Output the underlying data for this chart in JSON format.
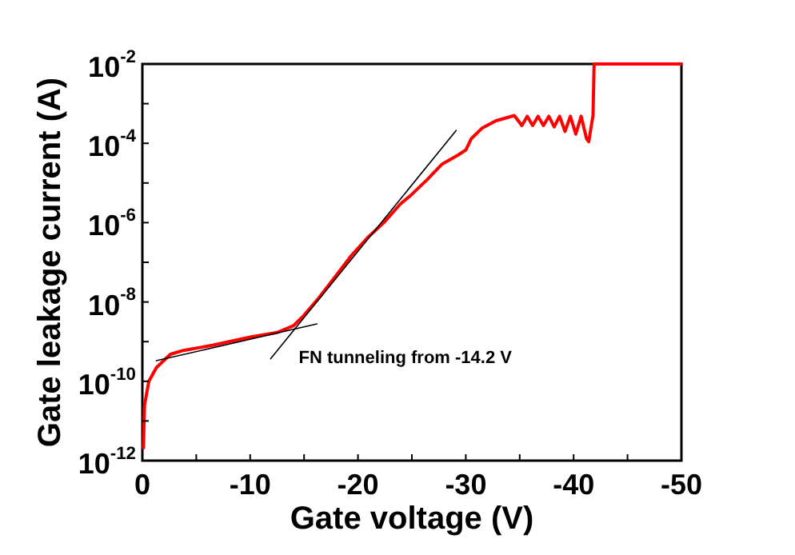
{
  "chart_data": {
    "type": "line",
    "xlabel": "Gate voltage (V)",
    "ylabel": "Gate leakage current (A)",
    "xlim": [
      0,
      -50
    ],
    "ylim": [
      1e-12,
      0.01
    ],
    "log": "y",
    "grid": false,
    "legend": false,
    "marker": "none",
    "xticks": [
      0,
      {
        "value": -5,
        "label": null
      },
      -10,
      {
        "value": -15,
        "label": null
      },
      -20,
      {
        "value": -25,
        "label": null
      },
      -30,
      {
        "value": -35,
        "label": null
      },
      -40,
      {
        "value": -45,
        "label": null
      },
      -50
    ],
    "yticks": [
      {
        "value": 1e-12,
        "label": "10$^{-12}$"
      },
      {
        "value": 1e-11,
        "label": null
      },
      {
        "value": 1e-10,
        "label": "10$^{-10}$"
      },
      {
        "value": 1e-09,
        "label": null
      },
      {
        "value": 1e-08,
        "label": "10$^{-8}$"
      },
      {
        "value": 1e-07,
        "label": null
      },
      {
        "value": 1e-06,
        "label": "10$^{-6}$"
      },
      {
        "value": 1e-05,
        "label": null
      },
      {
        "value": 0.0001,
        "label": "10$^{-4}$"
      },
      {
        "value": 0.001,
        "label": null
      },
      {
        "value": 0.01,
        "label": "10$^{-2}$"
      }
    ],
    "annotations": [
      "FN tunneling from -14.2 V"
    ],
    "series": [
      {
        "color": "#ff0000",
        "x": [
          -0.1,
          -0.2,
          -0.6,
          -1.3,
          -2.6,
          -3.8,
          -6.5,
          -10,
          -12.5,
          -14,
          -14.95,
          -16.4,
          -17.9,
          -19.4,
          -20.9,
          -22.4,
          -23.9,
          -24.9,
          -26.4,
          -27.8,
          -29.3,
          -30,
          -30.5,
          -31.5,
          -32.8,
          -34.5,
          -35.2,
          -35.7,
          -36.2,
          -36.7,
          -37.2,
          -37.7,
          -38.2,
          -38.7,
          -39.2,
          -39.7,
          -40.2,
          -40.7,
          -41.2,
          -41.4,
          -41.8,
          -41.9,
          -50
        ],
        "values": [
          2.1e-12,
          2.5e-11,
          1e-10,
          2.2e-10,
          4.8e-10,
          6e-10,
          8.1e-10,
          1.3e-09,
          1.7e-09,
          2.5e-09,
          4.5e-09,
          1.3e-08,
          4.4e-08,
          1.5e-07,
          4.2e-07,
          1e-06,
          2.9e-06,
          4.9e-06,
          1.2e-05,
          3e-05,
          5.1e-05,
          6.8e-05,
          0.00013,
          0.00024,
          0.00037,
          0.0005,
          0.00028,
          0.00048,
          0.00028,
          0.00048,
          0.00028,
          0.00048,
          0.00026,
          0.00048,
          0.0002,
          0.00048,
          0.00017,
          0.00048,
          0.00013,
          0.00011,
          0.0005,
          0.01,
          0.01
        ]
      },
      {
        "color": "#000000",
        "x": [
          -1.3,
          -16.2
        ],
        "values": [
          3.3e-10,
          2.8e-09
        ]
      },
      {
        "color": "#000000",
        "x": [
          -11.9,
          -29.1
        ],
        "values": [
          3.7e-10,
          0.00021
        ]
      }
    ]
  }
}
